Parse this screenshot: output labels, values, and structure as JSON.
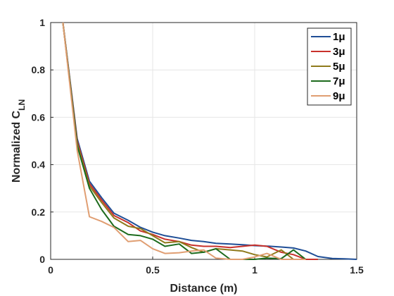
{
  "chart_data": {
    "type": "line",
    "title": "",
    "xlabel": "Distance (m)",
    "ylabel": "Normalized C",
    "ylabel_subscript": "LN",
    "xlim": [
      0,
      1.5
    ],
    "ylim": [
      0,
      1
    ],
    "xticks": [
      "0",
      "0.5",
      "1",
      "1.5"
    ],
    "yticks": [
      "0",
      "0.2",
      "0.4",
      "0.6",
      "0.8",
      "1"
    ],
    "xtick_values": [
      0,
      0.5,
      1,
      1.5
    ],
    "ytick_values": [
      0,
      0.2,
      0.4,
      0.6,
      0.8,
      1
    ],
    "grid": true,
    "legend_position": "top-right",
    "series": [
      {
        "name": "1μ",
        "color": "#1f4e96",
        "x": [
          0.06,
          0.13,
          0.19,
          0.25,
          0.31,
          0.38,
          0.44,
          0.5,
          0.56,
          0.63,
          0.69,
          0.75,
          0.81,
          0.88,
          0.94,
          1.0,
          1.06,
          1.13,
          1.19,
          1.25,
          1.31,
          1.38,
          1.44,
          1.5
        ],
        "y": [
          1.0,
          0.51,
          0.33,
          0.26,
          0.195,
          0.165,
          0.135,
          0.115,
          0.1,
          0.09,
          0.08,
          0.075,
          0.068,
          0.065,
          0.062,
          0.058,
          0.056,
          0.052,
          0.048,
          0.035,
          0.012,
          0.004,
          0.002,
          0.0
        ]
      },
      {
        "name": "3μ",
        "color": "#c8312b",
        "x": [
          0.06,
          0.13,
          0.19,
          0.25,
          0.31,
          0.38,
          0.44,
          0.5,
          0.56,
          0.63,
          0.69,
          0.75,
          0.81,
          0.88,
          0.94,
          1.0,
          1.06,
          1.13,
          1.19,
          1.25,
          1.31
        ],
        "y": [
          1.0,
          0.5,
          0.32,
          0.25,
          0.185,
          0.155,
          0.12,
          0.105,
          0.085,
          0.075,
          0.06,
          0.055,
          0.055,
          0.05,
          0.055,
          0.06,
          0.055,
          0.03,
          0.02,
          0.0,
          0.0
        ]
      },
      {
        "name": "5μ",
        "color": "#8f7a1c",
        "x": [
          0.06,
          0.13,
          0.19,
          0.25,
          0.31,
          0.38,
          0.44,
          0.5,
          0.56,
          0.63,
          0.69,
          0.75,
          0.81,
          0.88,
          0.94,
          1.0,
          1.06,
          1.13,
          1.19,
          1.25
        ],
        "y": [
          1.0,
          0.49,
          0.31,
          0.24,
          0.175,
          0.14,
          0.13,
          0.1,
          0.07,
          0.075,
          0.05,
          0.03,
          0.045,
          0.04,
          0.035,
          0.02,
          0.01,
          0.04,
          0.0,
          0.0
        ]
      },
      {
        "name": "7μ",
        "color": "#1d6b1d",
        "x": [
          0.06,
          0.13,
          0.19,
          0.25,
          0.31,
          0.38,
          0.44,
          0.5,
          0.56,
          0.63,
          0.69,
          0.75,
          0.81,
          0.88,
          0.94,
          1.0,
          1.06,
          1.13,
          1.19,
          1.25
        ],
        "y": [
          1.0,
          0.48,
          0.3,
          0.21,
          0.14,
          0.105,
          0.1,
          0.085,
          0.055,
          0.065,
          0.025,
          0.03,
          0.045,
          0.0,
          0.0,
          0.0,
          0.005,
          0.003,
          0.04,
          0.0
        ]
      },
      {
        "name": "9μ",
        "color": "#e09e72",
        "x": [
          0.06,
          0.13,
          0.19,
          0.25,
          0.31,
          0.38,
          0.44,
          0.5,
          0.56,
          0.63,
          0.69,
          0.75,
          0.81,
          0.88,
          0.94,
          1.0,
          1.06,
          1.13,
          1.19,
          1.25
        ],
        "y": [
          1.0,
          0.46,
          0.18,
          0.16,
          0.135,
          0.075,
          0.08,
          0.045,
          0.025,
          0.028,
          0.035,
          0.04,
          0.005,
          0.0,
          0.0,
          0.01,
          0.025,
          0.0,
          0.0,
          0.0
        ]
      }
    ]
  }
}
